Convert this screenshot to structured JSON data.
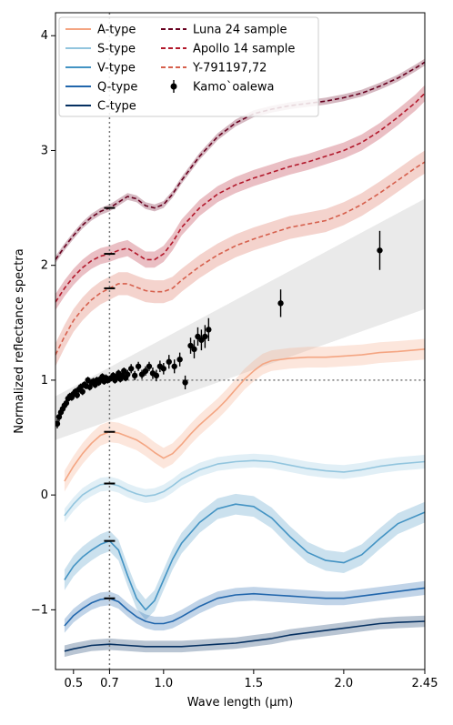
{
  "chart_data": {
    "type": "line",
    "xlabel": "Wave length (μm)",
    "ylabel": "Normalized reflectance spectra",
    "xlim": [
      0.4,
      2.45
    ],
    "ylim": [
      -1.52,
      4.2
    ],
    "x_ticks": [
      {
        "value": 0.5,
        "label": "0.5"
      },
      {
        "value": 0.7,
        "label": "0.7"
      },
      {
        "value": 1.0,
        "label": "1.0"
      },
      {
        "value": 1.5,
        "label": "1.5"
      },
      {
        "value": 2.0,
        "label": "2.0"
      },
      {
        "value": 2.45,
        "label": "2.45"
      }
    ],
    "y_ticks": [
      {
        "value": -1,
        "label": "−1"
      },
      {
        "value": 0,
        "label": "0"
      },
      {
        "value": 1,
        "label": "1"
      },
      {
        "value": 2,
        "label": "2"
      },
      {
        "value": 3,
        "label": "3"
      },
      {
        "value": 4,
        "label": "4"
      }
    ],
    "reference_lines": {
      "vertical_x": 0.7,
      "horizontal_y": 1.0
    },
    "normalization_marks": [
      {
        "x": 0.7,
        "y": 2.5
      },
      {
        "x": 0.7,
        "y": 2.1
      },
      {
        "x": 0.7,
        "y": 1.8
      },
      {
        "x": 0.7,
        "y": 0.55
      },
      {
        "x": 0.7,
        "y": 0.1
      },
      {
        "x": 0.7,
        "y": -0.4
      },
      {
        "x": 0.7,
        "y": -0.9
      }
    ],
    "legend_position": "top-left",
    "series": [
      {
        "name": "A-type",
        "color": "#f4a582",
        "style": "solid",
        "band": 0.09,
        "x": [
          0.45,
          0.5,
          0.55,
          0.6,
          0.65,
          0.7,
          0.75,
          0.8,
          0.85,
          0.9,
          0.95,
          1.0,
          1.05,
          1.1,
          1.15,
          1.2,
          1.25,
          1.3,
          1.35,
          1.4,
          1.45,
          1.5,
          1.55,
          1.6,
          1.7,
          1.8,
          1.9,
          2.0,
          2.1,
          2.2,
          2.3,
          2.45
        ],
        "y": [
          0.12,
          0.25,
          0.36,
          0.45,
          0.52,
          0.55,
          0.54,
          0.51,
          0.48,
          0.43,
          0.37,
          0.32,
          0.36,
          0.44,
          0.53,
          0.61,
          0.68,
          0.75,
          0.83,
          0.92,
          1.01,
          1.08,
          1.14,
          1.17,
          1.19,
          1.2,
          1.2,
          1.21,
          1.22,
          1.24,
          1.25,
          1.27
        ]
      },
      {
        "name": "S-type",
        "color": "#92c5de",
        "style": "solid",
        "band": 0.06,
        "x": [
          0.45,
          0.5,
          0.55,
          0.6,
          0.65,
          0.7,
          0.75,
          0.8,
          0.85,
          0.9,
          0.95,
          1.0,
          1.05,
          1.1,
          1.2,
          1.3,
          1.4,
          1.5,
          1.6,
          1.7,
          1.8,
          1.9,
          2.0,
          2.1,
          2.2,
          2.3,
          2.45
        ],
        "y": [
          -0.18,
          -0.08,
          0.0,
          0.05,
          0.09,
          0.1,
          0.08,
          0.04,
          0.01,
          -0.01,
          0.0,
          0.03,
          0.08,
          0.14,
          0.22,
          0.27,
          0.29,
          0.3,
          0.29,
          0.26,
          0.23,
          0.21,
          0.2,
          0.22,
          0.25,
          0.27,
          0.29
        ]
      },
      {
        "name": "V-type",
        "color": "#4393c3",
        "style": "solid",
        "band": 0.09,
        "x": [
          0.45,
          0.5,
          0.55,
          0.6,
          0.65,
          0.7,
          0.75,
          0.8,
          0.85,
          0.9,
          0.95,
          1.0,
          1.05,
          1.1,
          1.2,
          1.3,
          1.4,
          1.5,
          1.6,
          1.7,
          1.8,
          1.9,
          2.0,
          2.1,
          2.2,
          2.3,
          2.45
        ],
        "y": [
          -0.74,
          -0.62,
          -0.54,
          -0.48,
          -0.43,
          -0.4,
          -0.48,
          -0.7,
          -0.9,
          -1.0,
          -0.92,
          -0.74,
          -0.56,
          -0.42,
          -0.24,
          -0.12,
          -0.08,
          -0.1,
          -0.2,
          -0.36,
          -0.5,
          -0.57,
          -0.59,
          -0.52,
          -0.38,
          -0.25,
          -0.15
        ]
      },
      {
        "name": "Q-type",
        "color": "#2166ac",
        "style": "solid",
        "band": 0.06,
        "x": [
          0.45,
          0.5,
          0.55,
          0.6,
          0.65,
          0.7,
          0.75,
          0.8,
          0.85,
          0.9,
          0.95,
          1.0,
          1.05,
          1.1,
          1.2,
          1.3,
          1.4,
          1.5,
          1.6,
          1.7,
          1.8,
          1.9,
          2.0,
          2.1,
          2.2,
          2.3,
          2.45
        ],
        "y": [
          -1.14,
          -1.05,
          -0.99,
          -0.94,
          -0.91,
          -0.9,
          -0.93,
          -1.0,
          -1.06,
          -1.1,
          -1.12,
          -1.12,
          -1.1,
          -1.06,
          -0.97,
          -0.9,
          -0.87,
          -0.86,
          -0.87,
          -0.88,
          -0.89,
          -0.9,
          -0.9,
          -0.88,
          -0.86,
          -0.84,
          -0.81
        ]
      },
      {
        "name": "C-type",
        "color": "#053061",
        "style": "solid",
        "band": 0.05,
        "x": [
          0.45,
          0.5,
          0.6,
          0.7,
          0.8,
          0.9,
          1.0,
          1.1,
          1.2,
          1.3,
          1.4,
          1.5,
          1.6,
          1.7,
          1.8,
          1.9,
          2.0,
          2.1,
          2.2,
          2.3,
          2.45
        ],
        "y": [
          -1.36,
          -1.34,
          -1.31,
          -1.3,
          -1.31,
          -1.32,
          -1.32,
          -1.32,
          -1.31,
          -1.3,
          -1.29,
          -1.27,
          -1.25,
          -1.22,
          -1.2,
          -1.18,
          -1.16,
          -1.14,
          -1.12,
          -1.11,
          -1.1
        ]
      },
      {
        "name": "Luna 24 sample",
        "color": "#67001f",
        "style": "dashed",
        "band": 0.03,
        "x": [
          0.4,
          0.45,
          0.5,
          0.55,
          0.6,
          0.65,
          0.7,
          0.75,
          0.8,
          0.85,
          0.9,
          0.95,
          1.0,
          1.05,
          1.1,
          1.2,
          1.3,
          1.4,
          1.5,
          1.6,
          1.7,
          1.8,
          1.9,
          2.0,
          2.1,
          2.2,
          2.3,
          2.4,
          2.45
        ],
        "y": [
          2.05,
          2.16,
          2.26,
          2.35,
          2.42,
          2.47,
          2.5,
          2.55,
          2.6,
          2.58,
          2.52,
          2.5,
          2.53,
          2.62,
          2.74,
          2.95,
          3.12,
          3.24,
          3.32,
          3.36,
          3.39,
          3.41,
          3.43,
          3.46,
          3.5,
          3.56,
          3.63,
          3.72,
          3.77
        ]
      },
      {
        "name": "Apollo 14 sample",
        "color": "#b2182b",
        "style": "dashed",
        "band": 0.07,
        "x": [
          0.4,
          0.45,
          0.5,
          0.55,
          0.6,
          0.65,
          0.7,
          0.75,
          0.8,
          0.85,
          0.9,
          0.95,
          1.0,
          1.05,
          1.1,
          1.2,
          1.3,
          1.4,
          1.5,
          1.6,
          1.7,
          1.8,
          1.9,
          2.0,
          2.1,
          2.2,
          2.3,
          2.4,
          2.45
        ],
        "y": [
          1.68,
          1.8,
          1.9,
          1.98,
          2.04,
          2.08,
          2.1,
          2.13,
          2.15,
          2.1,
          2.05,
          2.05,
          2.1,
          2.2,
          2.33,
          2.5,
          2.62,
          2.7,
          2.76,
          2.81,
          2.86,
          2.9,
          2.95,
          3.0,
          3.07,
          3.17,
          3.29,
          3.42,
          3.5
        ]
      },
      {
        "name": "Y-791197,72",
        "color": "#d6604d",
        "style": "dashed",
        "band": 0.1,
        "x": [
          0.4,
          0.45,
          0.5,
          0.55,
          0.6,
          0.65,
          0.7,
          0.75,
          0.8,
          0.85,
          0.9,
          0.95,
          1.0,
          1.05,
          1.1,
          1.2,
          1.3,
          1.4,
          1.5,
          1.6,
          1.7,
          1.8,
          1.9,
          2.0,
          2.1,
          2.2,
          2.3,
          2.4,
          2.45
        ],
        "y": [
          1.22,
          1.38,
          1.52,
          1.62,
          1.7,
          1.76,
          1.8,
          1.84,
          1.84,
          1.81,
          1.78,
          1.77,
          1.77,
          1.8,
          1.87,
          1.99,
          2.09,
          2.17,
          2.23,
          2.28,
          2.33,
          2.36,
          2.39,
          2.45,
          2.53,
          2.63,
          2.74,
          2.85,
          2.9
        ]
      }
    ],
    "kamooalewa_band": {
      "color": "#d9d9d9",
      "x": [
        0.4,
        2.45
      ],
      "lower": [
        0.48,
        1.62
      ],
      "upper": [
        0.86,
        2.58
      ]
    },
    "kamooalewa": {
      "name": "Kamo`oalewa",
      "color": "#000000",
      "x": [
        0.41,
        0.42,
        0.43,
        0.44,
        0.45,
        0.46,
        0.47,
        0.48,
        0.49,
        0.5,
        0.51,
        0.52,
        0.53,
        0.54,
        0.55,
        0.56,
        0.57,
        0.58,
        0.59,
        0.6,
        0.61,
        0.62,
        0.63,
        0.64,
        0.65,
        0.66,
        0.67,
        0.68,
        0.69,
        0.7,
        0.71,
        0.72,
        0.73,
        0.74,
        0.75,
        0.76,
        0.77,
        0.78,
        0.79,
        0.8,
        0.82,
        0.84,
        0.86,
        0.88,
        0.9,
        0.92,
        0.94,
        0.96,
        0.98,
        1.0,
        1.03,
        1.06,
        1.09,
        1.12,
        1.15,
        1.17,
        1.19,
        1.21,
        1.23,
        1.25,
        1.65,
        2.2
      ],
      "y": [
        0.62,
        0.68,
        0.72,
        0.75,
        0.78,
        0.8,
        0.84,
        0.86,
        0.85,
        0.88,
        0.9,
        0.87,
        0.92,
        0.94,
        0.9,
        0.96,
        0.95,
        1.0,
        0.94,
        0.98,
        0.99,
        0.96,
        1.0,
        0.98,
        1.01,
        1.03,
        0.99,
        1.02,
        1.0,
        1.01,
        1.02,
        1.04,
        1.0,
        1.03,
        1.06,
        1.01,
        1.04,
        1.08,
        1.02,
        1.05,
        1.1,
        1.04,
        1.12,
        1.05,
        1.08,
        1.12,
        1.06,
        1.04,
        1.12,
        1.1,
        1.16,
        1.12,
        1.18,
        0.98,
        1.3,
        1.27,
        1.38,
        1.35,
        1.38,
        1.44,
        1.67,
        2.13
      ],
      "err": [
        0.04,
        0.04,
        0.04,
        0.04,
        0.03,
        0.03,
        0.03,
        0.03,
        0.03,
        0.03,
        0.03,
        0.03,
        0.03,
        0.03,
        0.03,
        0.03,
        0.03,
        0.03,
        0.03,
        0.03,
        0.03,
        0.03,
        0.03,
        0.03,
        0.03,
        0.03,
        0.03,
        0.03,
        0.03,
        0.03,
        0.03,
        0.03,
        0.03,
        0.03,
        0.03,
        0.03,
        0.03,
        0.03,
        0.03,
        0.04,
        0.04,
        0.04,
        0.04,
        0.04,
        0.04,
        0.04,
        0.05,
        0.05,
        0.05,
        0.05,
        0.06,
        0.06,
        0.06,
        0.06,
        0.07,
        0.08,
        0.08,
        0.09,
        0.1,
        0.1,
        0.12,
        0.17
      ]
    }
  }
}
